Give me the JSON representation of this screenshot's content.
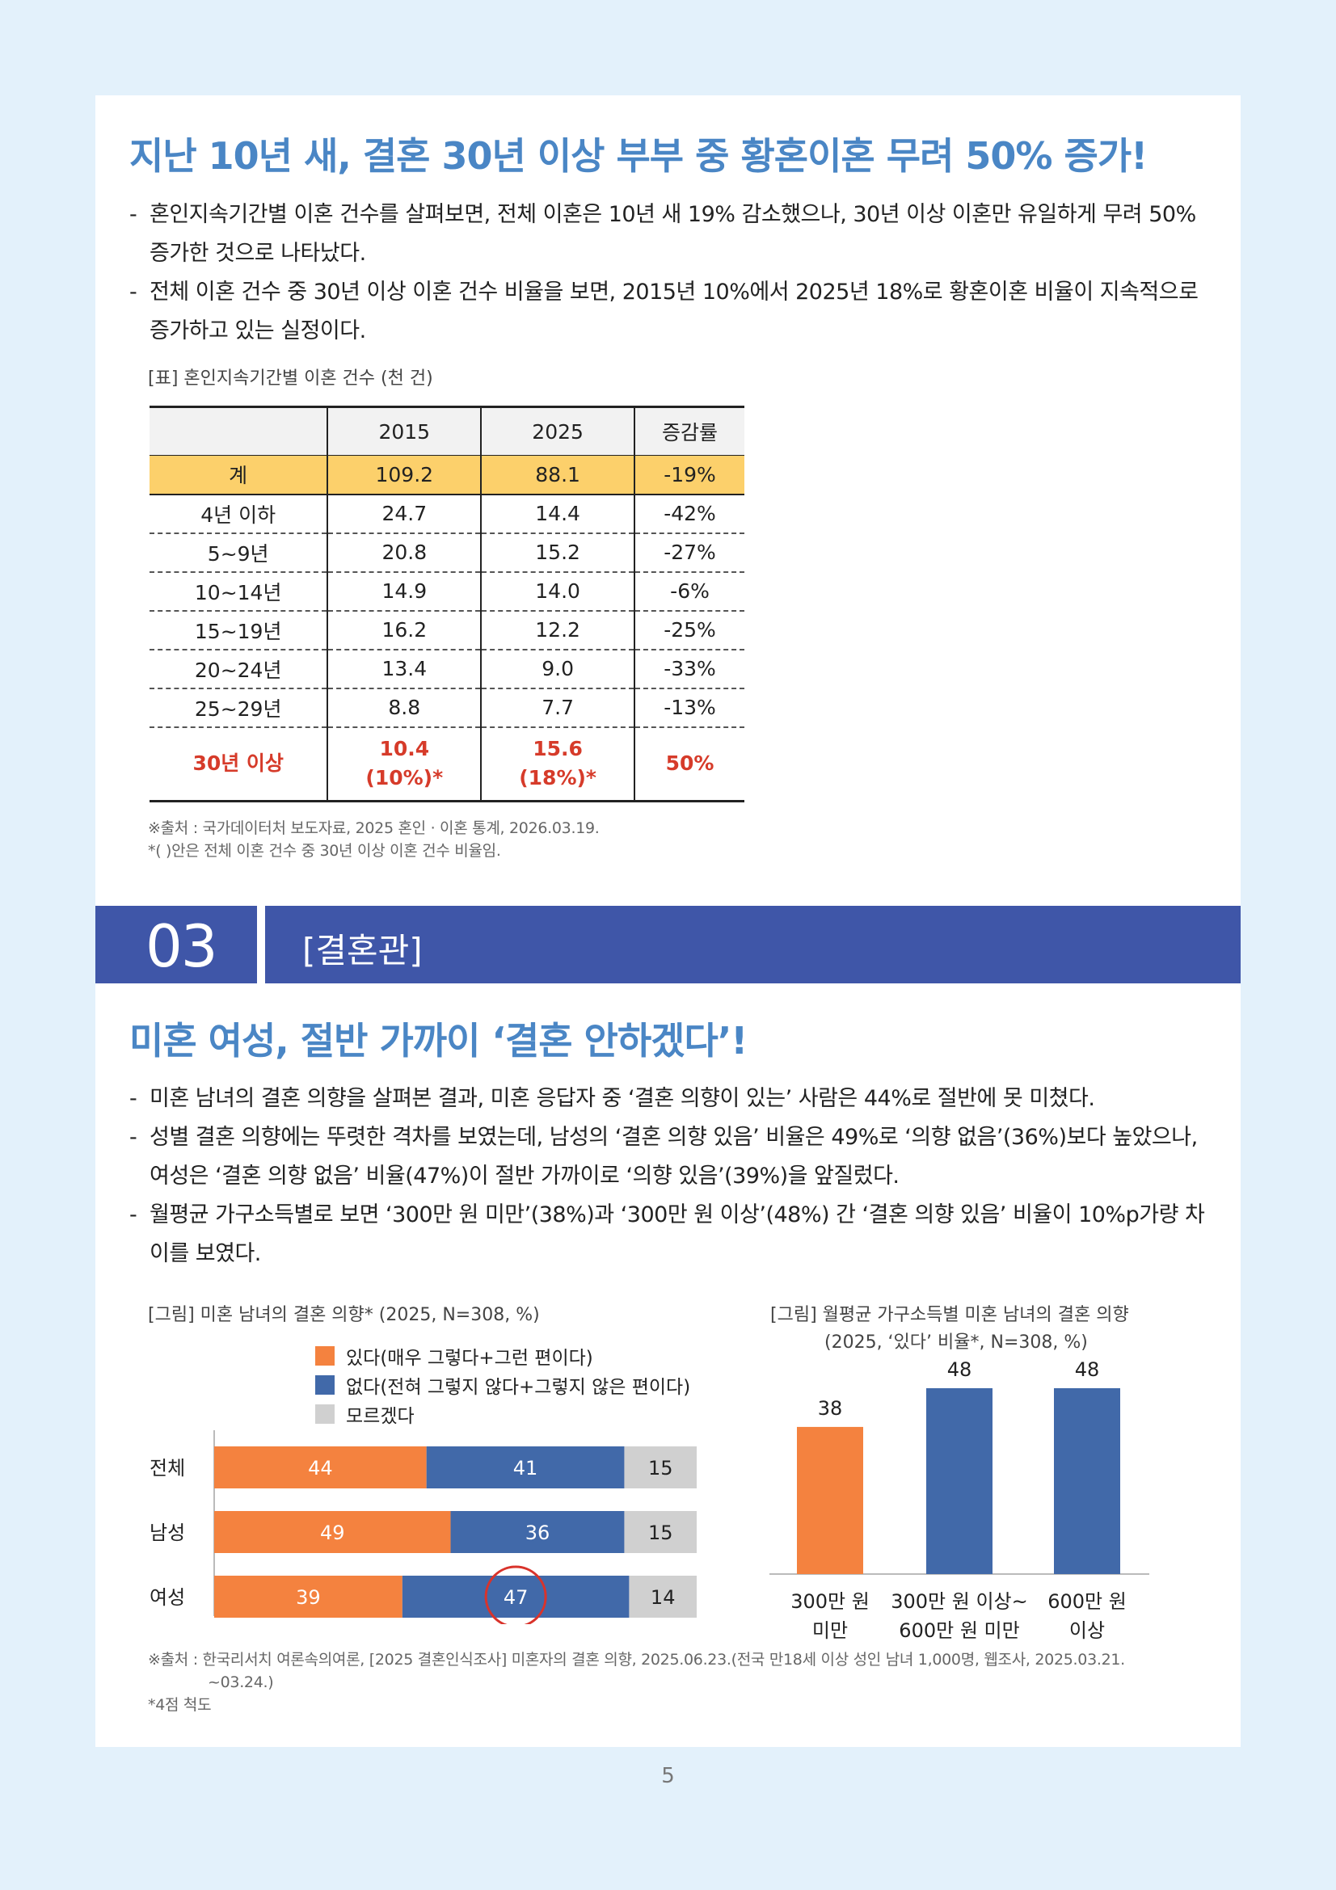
{
  "page_number": "5",
  "section1": {
    "headline": "지난 10년 새, 결혼 30년 이상 부부 중 황혼이혼 무려 50% 증가!",
    "bullets": [
      "혼인지속기간별 이혼 건수를 살펴보면, 전체 이혼은 10년 새 19% 감소했으나, 30년 이상 이혼만 유일하게 무려 50% 증가한 것으로 나타났다.",
      "전체 이혼 건수 중 30년 이상 이혼 건수 비율을 보면, 2015년 10%에서 2025년 18%로 황혼이혼 비율이 지속적으로 증가하고 있는 실정이다."
    ],
    "table_caption": "[표] 혼인지속기간별 이혼 건수 (천 건)",
    "table": {
      "headers": [
        "",
        "2015",
        "2025",
        "증감률"
      ],
      "total": [
        "계",
        "109.2",
        "88.1",
        "-19%"
      ],
      "rows": [
        [
          "4년 이하",
          "24.7",
          "14.4",
          "-42%"
        ],
        [
          "5~9년",
          "20.8",
          "15.2",
          "-27%"
        ],
        [
          "10~14년",
          "14.9",
          "14.0",
          "-6%"
        ],
        [
          "15~19년",
          "16.2",
          "12.2",
          "-25%"
        ],
        [
          "20~24년",
          "13.4",
          "9.0",
          "-33%"
        ],
        [
          "25~29년",
          "8.8",
          "7.7",
          "-13%"
        ]
      ],
      "highlight": {
        "label": "30년 이상",
        "v2015": "10.4",
        "v2015_pct": "(10%)*",
        "v2025": "15.6",
        "v2025_pct": "(18%)*",
        "change": "50%"
      }
    },
    "source_lines": [
      "※출처 : 국가데이터처 보도자료, 2025 혼인 · 이혼 통계, 2026.03.19.",
      "*(     )안은 전체 이혼 건수 중 30년 이상 이혼 건수 비율임."
    ]
  },
  "section2": {
    "number": "03",
    "title": "[결혼관]",
    "headline": "미혼 여성, 절반 가까이 ‘결혼 안하겠다’!",
    "bullets": [
      "미혼 남녀의 결혼 의향을 살펴본 결과, 미혼 응답자 중 ‘결혼 의향이 있는’ 사람은 44%로 절반에 못 미쳤다.",
      "성별 결혼 의향에는 뚜렷한 격차를 보였는데, 남성의 ‘결혼 의향 있음’ 비율은 49%로 ‘의향 없음’(36%)보다 높았으나, 여성은 ‘결혼 의향 없음’ 비율(47%)이 절반 가까이로 ‘의향 있음’(39%)을 앞질렀다.",
      "월평균 가구소득별로 보면 ‘300만 원 미만’(38%)과 ‘300만 원 이상’(48%) 간 ‘결혼 의향 있음’ 비율이 10%p가량 차이를 보였다."
    ],
    "chart1_caption": "[그림] 미혼 남녀의 결혼 의향* (2025, N=308, %)",
    "chart2_caption_line1": "[그림] 월평균 가구소득별 미혼 남녀의 결혼 의향",
    "chart2_caption_line2": "(2025, ‘있다’ 비율*, N=308, %)",
    "source_lines": [
      "※출처 : 한국리서치 여론속의여론, [2025 결혼인식조사] 미혼자의 결혼 의향, 2025.06.23.(전국 만18세 이상 성인 남녀 1,000명, 웹조사, 2025.03.21.",
      "~03.24.)",
      "*4점 척도"
    ]
  },
  "chart_data": [
    {
      "type": "bar",
      "orientation": "horizontal",
      "stacked": true,
      "categories": [
        "전체",
        "남성",
        "여성"
      ],
      "series": [
        {
          "name": "있다(매우 그렇다+그런 편이다)",
          "values": [
            44,
            49,
            39
          ],
          "color": "#f4823f"
        },
        {
          "name": "없다(전혀 그렇지 않다+그렇지 않은 편이다)",
          "values": [
            41,
            36,
            47
          ],
          "color": "#4169a9"
        },
        {
          "name": "모르겠다",
          "values": [
            15,
            15,
            14
          ],
          "color": "#d0d0d0"
        }
      ],
      "xlim": [
        0,
        100
      ],
      "legend": "top",
      "annotation": {
        "category": "여성",
        "series": "없다(전혀 그렇지 않다+그렇지 않은 편이다)",
        "style": "red circle"
      }
    },
    {
      "type": "bar",
      "orientation": "vertical",
      "categories": [
        "300만 원 미만",
        "300만 원 이상~600만 원 미만",
        "600만 원 이상"
      ],
      "category_lines": [
        [
          "300만 원",
          "미만"
        ],
        [
          "300만 원 이상~",
          "600만 원 미만"
        ],
        [
          "600만 원",
          "이상"
        ]
      ],
      "values": [
        38,
        48,
        48
      ],
      "colors": [
        "#f4823f",
        "#4169a9",
        "#4169a9"
      ],
      "ylim": [
        0,
        60
      ]
    }
  ]
}
